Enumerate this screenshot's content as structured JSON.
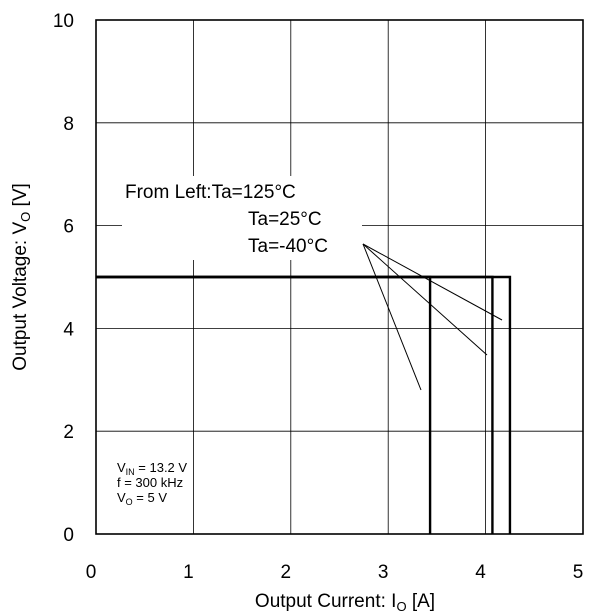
{
  "chart_data": {
    "type": "line",
    "xlabel": {
      "main": "Output Current: I",
      "sub": "O",
      "unit": " [A]"
    },
    "ylabel": {
      "main": "Output Voltage: V",
      "sub": "O",
      "unit": " [V]"
    },
    "xlim": [
      0,
      5
    ],
    "ylim": [
      0,
      10
    ],
    "xticks": [
      "0",
      "1",
      "2",
      "3",
      "4",
      "5"
    ],
    "yticks": [
      "0",
      "2",
      "4",
      "6",
      "8",
      "10"
    ],
    "grid": true,
    "series": [
      {
        "name": "Ta=125°C",
        "x": [
          0,
          3.43,
          3.43
        ],
        "y": [
          5,
          5,
          0
        ]
      },
      {
        "name": "Ta=25°C",
        "x": [
          0,
          4.07,
          4.07
        ],
        "y": [
          5,
          5,
          0
        ]
      },
      {
        "name": "Ta=-40°C",
        "x": [
          0,
          4.25,
          4.25
        ],
        "y": [
          5,
          5,
          0
        ]
      }
    ],
    "annotations": {
      "legend_lines": [
        "From Left:Ta=125°C",
        "Ta=25°C",
        "Ta=-40°C"
      ],
      "conditions": [
        {
          "main": "V",
          "sub": "IN",
          "rest": " = 13.2 V"
        },
        {
          "main": "f = 300 kHz",
          "sub": "",
          "rest": ""
        },
        {
          "main": "V",
          "sub": "O",
          "rest": " = 5 V"
        }
      ]
    }
  }
}
